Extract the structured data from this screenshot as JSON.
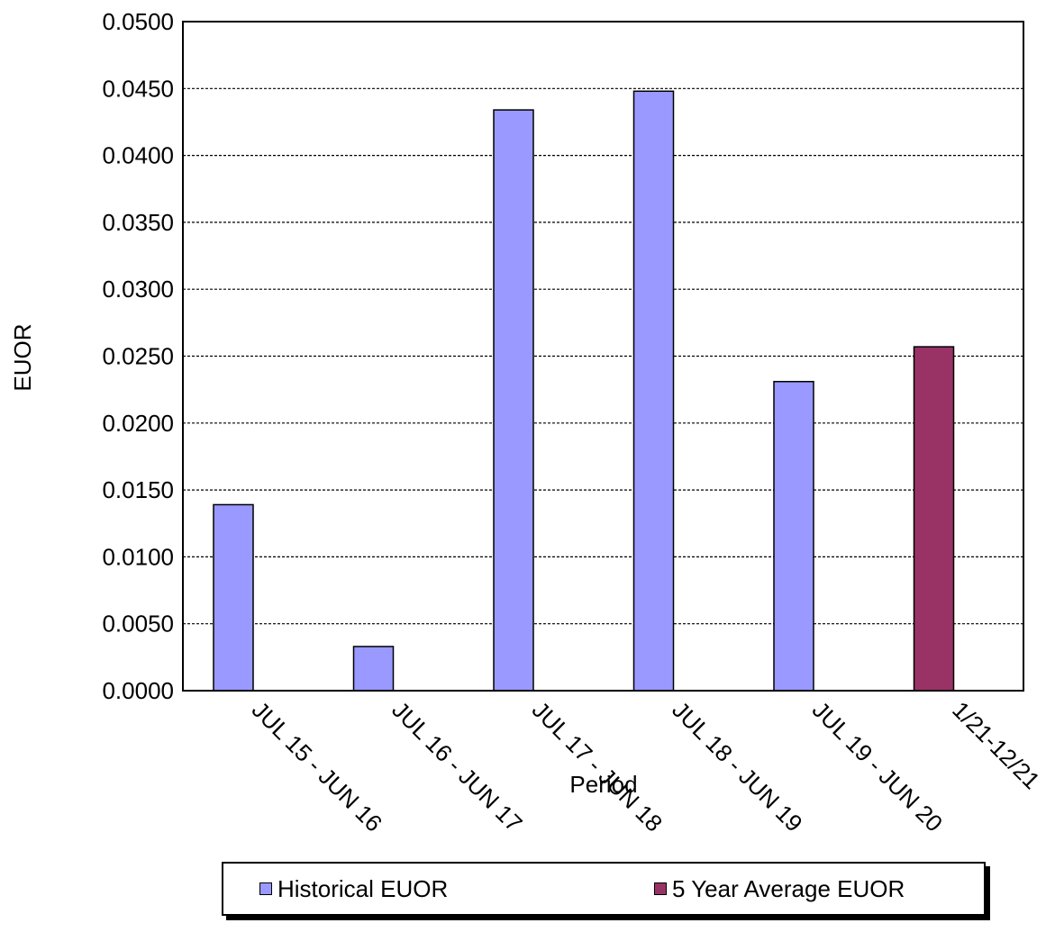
{
  "chart_data": {
    "type": "bar",
    "title": "",
    "xlabel": "Period",
    "ylabel": "EUOR",
    "ylim": [
      0,
      0.05
    ],
    "y_ticks": [
      "0.0000",
      "0.0050",
      "0.0100",
      "0.0150",
      "0.0200",
      "0.0250",
      "0.0300",
      "0.0350",
      "0.0400",
      "0.0450",
      "0.0500"
    ],
    "categories": [
      "JUL 15 - JUN 16",
      "JUL 16 - JUN 17",
      "JUL 17 - JUN 18",
      "JUL 18 - JUN 19",
      "JUL 19 - JUN 20",
      "1/21-12/21"
    ],
    "series": [
      {
        "name": "Historical EUOR",
        "color": "#9999ff",
        "values": [
          0.0139,
          0.0033,
          0.0434,
          0.0448,
          0.0231,
          null
        ]
      },
      {
        "name": "5 Year Average EUOR",
        "color": "#993366",
        "values": [
          null,
          null,
          null,
          null,
          null,
          0.0257
        ]
      }
    ],
    "grid": true,
    "grid_style": "dashed-horizontal",
    "legend_position": "bottom"
  }
}
